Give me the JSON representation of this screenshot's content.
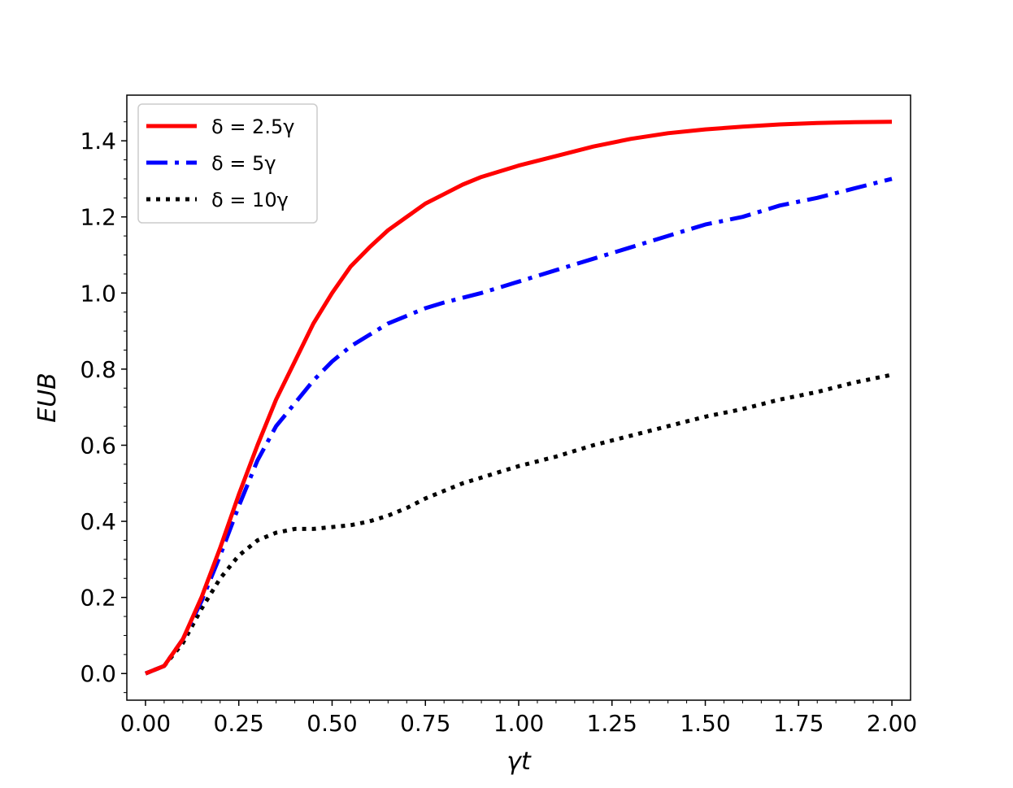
{
  "chart_data": {
    "type": "line",
    "xlabel": "γt",
    "ylabel": "EUB",
    "xlim": [
      -0.05,
      2.05
    ],
    "ylim": [
      -0.07,
      1.52
    ],
    "x_ticks": [
      "0.00",
      "0.25",
      "0.50",
      "0.75",
      "1.00",
      "1.25",
      "1.50",
      "1.75",
      "2.00"
    ],
    "x_tick_values": [
      0,
      0.25,
      0.5,
      0.75,
      1.0,
      1.25,
      1.5,
      1.75,
      2.0
    ],
    "y_ticks": [
      "0.0",
      "0.2",
      "0.4",
      "0.6",
      "0.8",
      "1.0",
      "1.2",
      "1.4"
    ],
    "y_tick_values": [
      0,
      0.2,
      0.4,
      0.6,
      0.8,
      1.0,
      1.2,
      1.4
    ],
    "minor_ticks": true,
    "grid": false,
    "legend_position": "top-left",
    "series": [
      {
        "name": "δ = 2.5γ",
        "color": "#ff0000",
        "style": "solid",
        "x": [
          0,
          0.05,
          0.1,
          0.15,
          0.2,
          0.25,
          0.3,
          0.35,
          0.4,
          0.45,
          0.5,
          0.55,
          0.6,
          0.65,
          0.7,
          0.75,
          0.8,
          0.85,
          0.9,
          0.95,
          1.0,
          1.1,
          1.2,
          1.3,
          1.4,
          1.5,
          1.6,
          1.7,
          1.8,
          1.9,
          2.0
        ],
        "y": [
          0,
          0.02,
          0.09,
          0.2,
          0.33,
          0.47,
          0.6,
          0.72,
          0.82,
          0.92,
          1.0,
          1.07,
          1.12,
          1.165,
          1.2,
          1.235,
          1.26,
          1.285,
          1.305,
          1.32,
          1.335,
          1.36,
          1.385,
          1.405,
          1.42,
          1.43,
          1.437,
          1.443,
          1.447,
          1.449,
          1.45
        ]
      },
      {
        "name": "δ = 5γ",
        "color": "#0000ff",
        "style": "dashdot",
        "x": [
          0,
          0.05,
          0.1,
          0.15,
          0.2,
          0.25,
          0.3,
          0.35,
          0.4,
          0.45,
          0.5,
          0.55,
          0.6,
          0.65,
          0.7,
          0.75,
          0.8,
          0.9,
          1.0,
          1.1,
          1.2,
          1.3,
          1.4,
          1.5,
          1.6,
          1.7,
          1.8,
          1.9,
          2.0
        ],
        "y": [
          0,
          0.02,
          0.09,
          0.19,
          0.31,
          0.44,
          0.56,
          0.65,
          0.71,
          0.77,
          0.82,
          0.86,
          0.89,
          0.92,
          0.94,
          0.96,
          0.975,
          1.0,
          1.03,
          1.06,
          1.09,
          1.12,
          1.15,
          1.18,
          1.2,
          1.23,
          1.25,
          1.275,
          1.3
        ]
      },
      {
        "name": "δ = 10γ",
        "color": "#000000",
        "style": "dotted",
        "x": [
          0,
          0.05,
          0.1,
          0.15,
          0.2,
          0.25,
          0.3,
          0.35,
          0.4,
          0.45,
          0.5,
          0.55,
          0.6,
          0.65,
          0.7,
          0.75,
          0.8,
          0.85,
          0.9,
          0.95,
          1.0,
          1.1,
          1.2,
          1.3,
          1.4,
          1.5,
          1.6,
          1.7,
          1.8,
          1.9,
          2.0
        ],
        "y": [
          0,
          0.02,
          0.08,
          0.17,
          0.25,
          0.31,
          0.35,
          0.37,
          0.38,
          0.38,
          0.385,
          0.39,
          0.4,
          0.415,
          0.435,
          0.46,
          0.48,
          0.5,
          0.515,
          0.53,
          0.545,
          0.57,
          0.6,
          0.625,
          0.65,
          0.675,
          0.695,
          0.72,
          0.74,
          0.765,
          0.785
        ]
      }
    ]
  }
}
